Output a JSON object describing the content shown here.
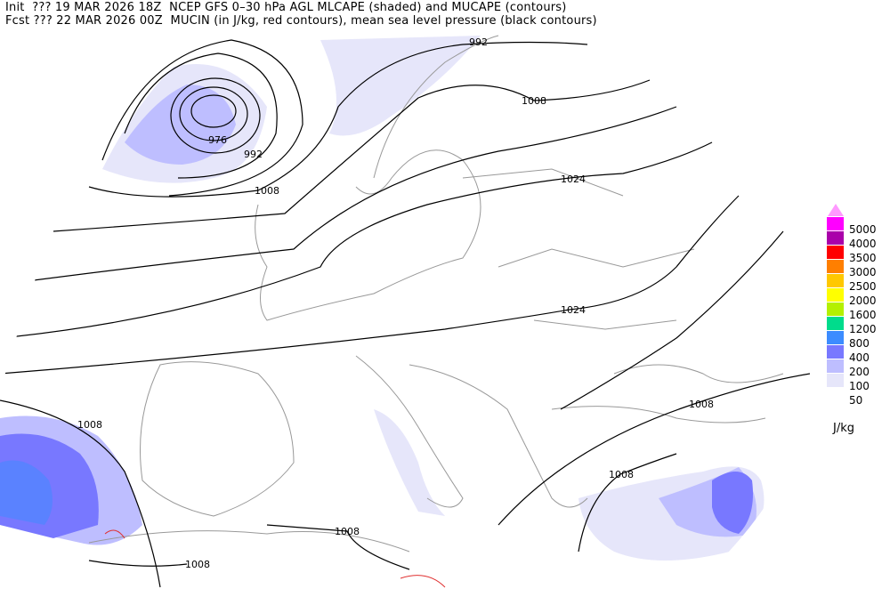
{
  "header": {
    "line1": "Init  ??? 19 MAR 2026 18Z  NCEP GFS 0–30 hPa AGL MLCAPE (shaded) and MUCAPE (contours)",
    "line2": "Fcst ??? 22 MAR 2026 00Z  MUCIN (in J/kg, red contours), mean sea level pressure (black contours)"
  },
  "legend": {
    "unit": "J/kg",
    "top_color": "#ff99ff",
    "levels": [
      {
        "label": "5000",
        "color": "#ff00ff"
      },
      {
        "label": "4000",
        "color": "#aa00aa"
      },
      {
        "label": "3500",
        "color": "#ff0000"
      },
      {
        "label": "3000",
        "color": "#ff7f00"
      },
      {
        "label": "2500",
        "color": "#ffc800"
      },
      {
        "label": "2000",
        "color": "#ffff00"
      },
      {
        "label": "1600",
        "color": "#b4f000"
      },
      {
        "label": "1200",
        "color": "#00dc8c"
      },
      {
        "label": "800",
        "color": "#3c8cff"
      },
      {
        "label": "400",
        "color": "#7878ff"
      },
      {
        "label": "200",
        "color": "#bebeff"
      },
      {
        "label": "100",
        "color": "#e6e6fa"
      },
      {
        "label": "50",
        "color": ""
      }
    ]
  },
  "isobar_labels": [
    "992",
    "1008",
    "976",
    "992",
    "1008",
    "1024",
    "1024",
    "1008",
    "1008",
    "1008",
    "1008",
    "1008"
  ]
}
